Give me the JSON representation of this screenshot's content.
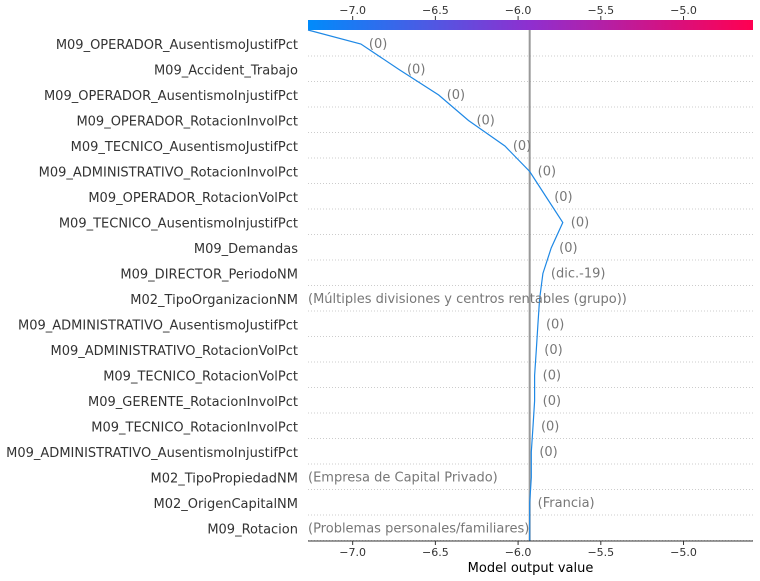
{
  "chart_data": {
    "type": "line",
    "variant": "shap-decision-plot",
    "xlabel": "Model output value",
    "xlim": [
      -7.27,
      -4.58
    ],
    "xticks": [
      -7.0,
      -6.5,
      -6.0,
      -5.5,
      -5.0
    ],
    "xtick_labels": [
      "−7.0",
      "−6.5",
      "−6.0",
      "−5.5",
      "−5.0"
    ],
    "base_value": -5.93,
    "start_value": -7.27,
    "colorbar": {
      "from": "#008bfb",
      "mid": "#8f2fcf",
      "to": "#ff0051"
    },
    "line_color": "#1e88e5",
    "features": [
      {
        "name": "M09_OPERADOR_AusentismoJustifPct",
        "label": "(0)",
        "end": -6.95
      },
      {
        "name": "M09_Accident_Trabajo",
        "label": "(0)",
        "end": -6.72
      },
      {
        "name": "M09_OPERADOR_AusentismoInjustifPct",
        "label": "(0)",
        "end": -6.48
      },
      {
        "name": "M09_OPERADOR_RotacionInvolPct",
        "label": "(0)",
        "end": -6.3
      },
      {
        "name": "M09_TECNICO_AusentismoJustifPct",
        "label": "(0)",
        "end": -6.08
      },
      {
        "name": "M09_ADMINISTRATIVO_RotacionInvolPct",
        "label": "(0)",
        "end": -5.93
      },
      {
        "name": "M09_OPERADOR_RotacionVolPct",
        "label": "(0)",
        "end": -5.83
      },
      {
        "name": "M09_TECNICO_AusentismoInjustifPct",
        "label": "(0)",
        "end": -5.73
      },
      {
        "name": "M09_Demandas",
        "label": "(0)",
        "end": -5.8
      },
      {
        "name": "M09_DIRECTOR_PeriodoNM",
        "label": "(dic.-19)",
        "end": -5.85
      },
      {
        "name": "M02_TipoOrganizacionNM",
        "label": "(Múltiples divisiones y centros rentables (grupo))",
        "end": -5.87
      },
      {
        "name": "M09_ADMINISTRATIVO_AusentismoJustifPct",
        "label": "(0)",
        "end": -5.88
      },
      {
        "name": "M09_ADMINISTRATIVO_RotacionVolPct",
        "label": "(0)",
        "end": -5.89
      },
      {
        "name": "M09_TECNICO_RotacionVolPct",
        "label": "(0)",
        "end": -5.9
      },
      {
        "name": "M09_GERENTE_RotacionInvolPct",
        "label": "(0)",
        "end": -5.9
      },
      {
        "name": "M09_TECNICO_RotacionInvolPct",
        "label": "(0)",
        "end": -5.91
      },
      {
        "name": "M09_ADMINISTRATIVO_AusentismoInjustifPct",
        "label": "(0)",
        "end": -5.92
      },
      {
        "name": "M02_TipoPropiedadNM",
        "label": "(Empresa de Capital Privado)",
        "end": -5.92
      },
      {
        "name": "M02_OrigenCapitalNM",
        "label": "(Francia)",
        "end": -5.93
      },
      {
        "name": "M09_Rotacion",
        "label": "(Problemas personales/familiares)",
        "end": -5.93
      }
    ]
  }
}
